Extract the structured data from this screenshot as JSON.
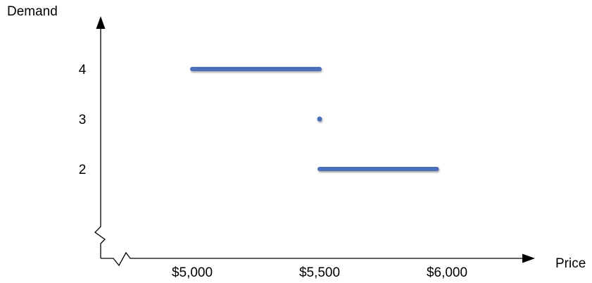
{
  "chart_data": {
    "type": "line",
    "title": "",
    "xlabel": "Price",
    "ylabel": "Demand",
    "x_ticks": [
      {
        "value": 5000,
        "label": "$5,000"
      },
      {
        "value": 5500,
        "label": "$5,500"
      },
      {
        "value": 6000,
        "label": "$6,000"
      }
    ],
    "y_ticks": [
      {
        "value": 2,
        "label": "2"
      },
      {
        "value": 3,
        "label": "3"
      },
      {
        "value": 4,
        "label": "4"
      }
    ],
    "segments": [
      {
        "x": [
          5000,
          5500
        ],
        "y": 4
      },
      {
        "x": [
          5500,
          5960
        ],
        "y": 2
      }
    ],
    "points": [
      {
        "x": 5500,
        "y": 3
      }
    ],
    "axis_breaks": [
      "x",
      "y"
    ],
    "colors": {
      "series": "#4a70b8",
      "axis": "#000000"
    }
  }
}
